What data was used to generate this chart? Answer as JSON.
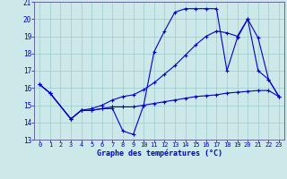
{
  "xlabel": "Graphe des températures (°C)",
  "bg_color": "#cce8e8",
  "line_color": "#0000cc",
  "grid_color": "#99cccc",
  "ylim": [
    13,
    21
  ],
  "xlim": [
    -0.5,
    23.5
  ],
  "yticks": [
    13,
    14,
    15,
    16,
    17,
    18,
    19,
    20,
    21
  ],
  "xticks": [
    0,
    1,
    2,
    3,
    4,
    5,
    6,
    7,
    8,
    9,
    10,
    11,
    12,
    13,
    14,
    15,
    16,
    17,
    18,
    19,
    20,
    21,
    22,
    23
  ],
  "line1_x": [
    0,
    1,
    3,
    4,
    5,
    6,
    7,
    8,
    9,
    10,
    11,
    12,
    13,
    14,
    15,
    16,
    17,
    18,
    19,
    20,
    21,
    22,
    23
  ],
  "line1_y": [
    16.2,
    15.7,
    14.2,
    14.7,
    14.7,
    14.8,
    14.8,
    13.5,
    13.3,
    15.0,
    18.1,
    19.3,
    20.4,
    20.6,
    20.6,
    20.6,
    20.6,
    17.0,
    18.9,
    20.0,
    17.0,
    16.5,
    15.5
  ],
  "line2_x": [
    0,
    1,
    3,
    4,
    5,
    6,
    7,
    8,
    9,
    10,
    11,
    12,
    13,
    14,
    15,
    16,
    17,
    18,
    19,
    20,
    21,
    22,
    23
  ],
  "line2_y": [
    16.2,
    15.7,
    14.2,
    14.7,
    14.7,
    14.8,
    14.9,
    14.9,
    14.9,
    15.0,
    15.1,
    15.2,
    15.3,
    15.4,
    15.5,
    15.55,
    15.6,
    15.7,
    15.75,
    15.8,
    15.85,
    15.85,
    15.5
  ],
  "line3_x": [
    0,
    1,
    3,
    4,
    5,
    6,
    7,
    8,
    9,
    10,
    11,
    12,
    13,
    14,
    15,
    16,
    17,
    18,
    19,
    20,
    21,
    22,
    23
  ],
  "line3_y": [
    16.2,
    15.7,
    14.2,
    14.7,
    14.8,
    15.0,
    15.3,
    15.5,
    15.6,
    15.9,
    16.3,
    16.8,
    17.3,
    17.9,
    18.5,
    19.0,
    19.3,
    19.2,
    19.0,
    20.0,
    18.9,
    16.5,
    15.5
  ]
}
